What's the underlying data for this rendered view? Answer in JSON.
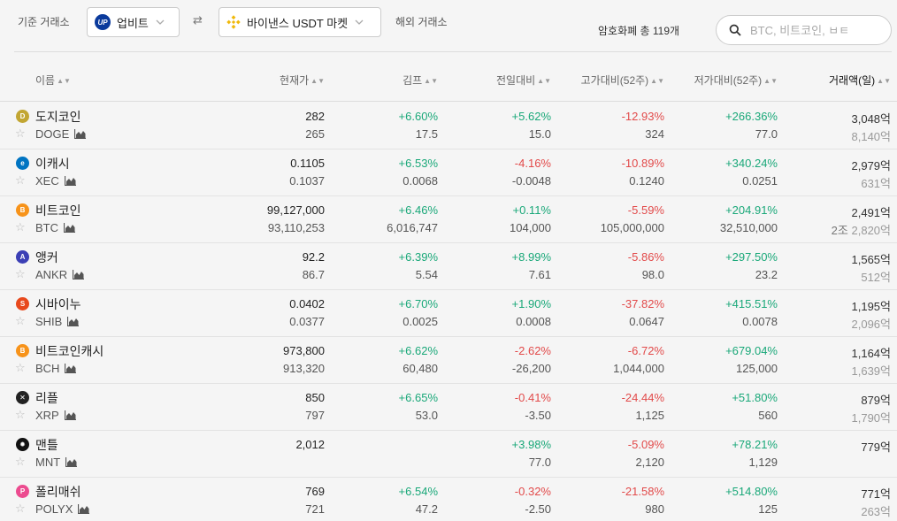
{
  "topbar": {
    "base_label": "기준 거래소",
    "exchange1": "업비트",
    "exchange1_logo": "UP",
    "swap_icon": "⇄",
    "exchange2": "바이낸스 USDT 마켓",
    "foreign_label": "해외 거래소",
    "count_text": "암호화폐 총 119개",
    "search_placeholder": "BTC, 비트코인, ㅂㅌ"
  },
  "header": {
    "name": "이름",
    "price": "현재가",
    "kimp": "김프",
    "day": "전일대비",
    "high": "고가대비(52주)",
    "low": "저가대비(52주)",
    "volume": "거래액(일)"
  },
  "colors": {
    "up": "#1aa879",
    "down": "#e24a4a"
  },
  "rows": [
    {
      "name": "도지코인",
      "symbol": "DOGE",
      "icon": "doge-icon",
      "icon_color": "#c2a633",
      "icon_char": "D",
      "price": "282",
      "price2": "265",
      "kimp": "+6.60%",
      "kimp2": "17.5",
      "day": "+5.62%",
      "day2": "15.0",
      "high": "-12.93%",
      "high2": "324",
      "low": "+266.36%",
      "low2": "77.0",
      "vol": "3,048억",
      "vol2": "8,140억"
    },
    {
      "name": "이캐시",
      "symbol": "XEC",
      "icon": "ecash-icon",
      "icon_color": "#0074c2",
      "icon_char": "e",
      "price": "0.1105",
      "price2": "0.1037",
      "kimp": "+6.53%",
      "kimp2": "0.0068",
      "day": "-4.16%",
      "day2": "-0.0048",
      "high": "-10.89%",
      "high2": "0.1240",
      "low": "+340.24%",
      "low2": "0.0251",
      "vol": "2,979억",
      "vol2": "631억"
    },
    {
      "name": "비트코인",
      "symbol": "BTC",
      "icon": "bitcoin-icon",
      "icon_color": "#f7931a",
      "icon_char": "B",
      "price": "99,127,000",
      "price2": "93,110,253",
      "kimp": "+6.46%",
      "kimp2": "6,016,747",
      "day": "+0.11%",
      "day2": "104,000",
      "high": "-5.59%",
      "high2": "105,000,000",
      "low": "+204.91%",
      "low2": "32,510,000",
      "vol": "2,491억",
      "vol2_prefix": "2조",
      "vol2": "2,820억"
    },
    {
      "name": "앵커",
      "symbol": "ANKR",
      "icon": "ankr-icon",
      "icon_color": "#3b3fb5",
      "icon_char": "A",
      "price": "92.2",
      "price2": "86.7",
      "kimp": "+6.39%",
      "kimp2": "5.54",
      "day": "+8.99%",
      "day2": "7.61",
      "high": "-5.86%",
      "high2": "98.0",
      "low": "+297.50%",
      "low2": "23.2",
      "vol": "1,565억",
      "vol2": "512억"
    },
    {
      "name": "시바이누",
      "symbol": "SHIB",
      "icon": "shiba-icon",
      "icon_color": "#e8491d",
      "icon_char": "S",
      "price": "0.0402",
      "price2": "0.0377",
      "kimp": "+6.70%",
      "kimp2": "0.0025",
      "day": "+1.90%",
      "day2": "0.0008",
      "high": "-37.82%",
      "high2": "0.0647",
      "low": "+415.51%",
      "low2": "0.0078",
      "vol": "1,195억",
      "vol2": "2,096억"
    },
    {
      "name": "비트코인캐시",
      "symbol": "BCH",
      "icon": "bitcoin-cash-icon",
      "icon_color": "#f7931a",
      "icon_char": "B",
      "price": "973,800",
      "price2": "913,320",
      "kimp": "+6.62%",
      "kimp2": "60,480",
      "day": "-2.62%",
      "day2": "-26,200",
      "high": "-6.72%",
      "high2": "1,044,000",
      "low": "+679.04%",
      "low2": "125,000",
      "vol": "1,164억",
      "vol2": "1,639억"
    },
    {
      "name": "리플",
      "symbol": "XRP",
      "icon": "ripple-icon",
      "icon_color": "#222222",
      "icon_char": "✕",
      "price": "850",
      "price2": "797",
      "kimp": "+6.65%",
      "kimp2": "53.0",
      "day": "-0.41%",
      "day2": "-3.50",
      "high": "-24.44%",
      "high2": "1,125",
      "low": "+51.80%",
      "low2": "560",
      "vol": "879억",
      "vol2": "1,790억"
    },
    {
      "name": "맨틀",
      "symbol": "MNT",
      "icon": "mantle-icon",
      "icon_color": "#111111",
      "icon_char": "✹",
      "price": "2,012",
      "price2": "",
      "kimp": "",
      "kimp2": "",
      "day": "+3.98%",
      "day2": "77.0",
      "high": "-5.09%",
      "high2": "2,120",
      "low": "+78.21%",
      "low2": "1,129",
      "vol": "779억",
      "vol2": ""
    },
    {
      "name": "폴리매쉬",
      "symbol": "POLYX",
      "icon": "polymesh-icon",
      "icon_color": "#ec4b8f",
      "icon_char": "P",
      "price": "769",
      "price2": "721",
      "kimp": "+6.54%",
      "kimp2": "47.2",
      "day": "-0.32%",
      "day2": "-2.50",
      "high": "-21.58%",
      "high2": "980",
      "low": "+514.80%",
      "low2": "125",
      "vol": "771억",
      "vol2": "263억"
    }
  ]
}
